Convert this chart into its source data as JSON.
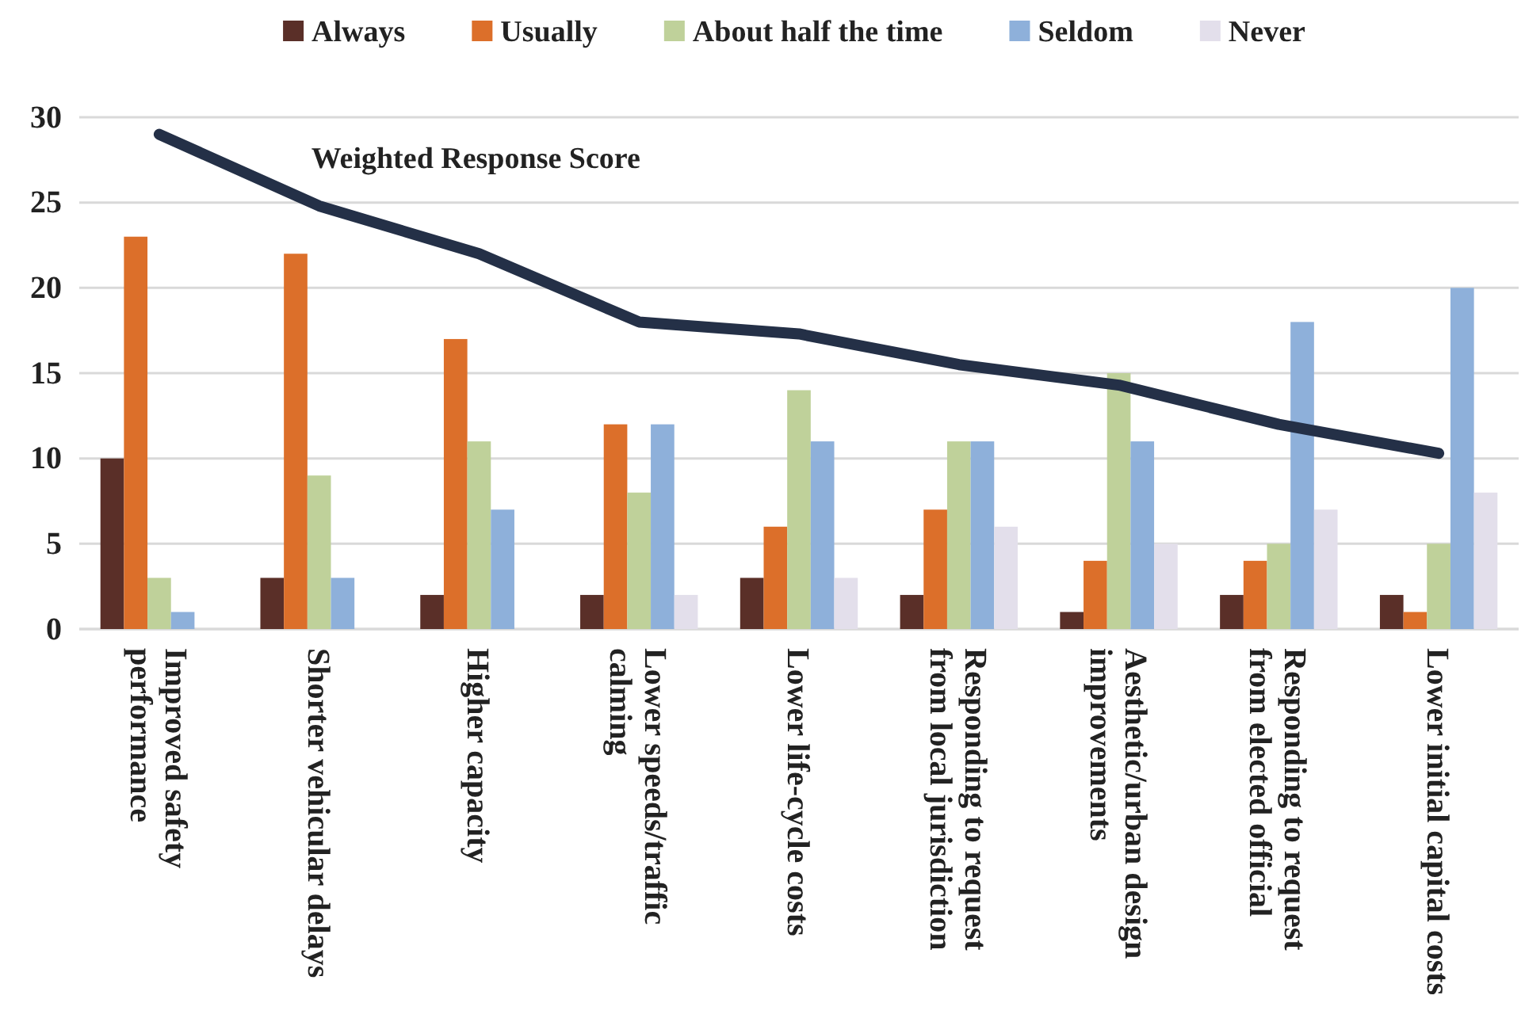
{
  "chart_data": {
    "type": "bar",
    "categories": [
      "Improved safety performance",
      "Shorter vehicular delays",
      "Higher capacity",
      "Lower speeds/traffic calming",
      "Lower life-cycle costs",
      "Responding to request from local jurisdiction",
      "Aesthetic/urban design improvements",
      "Responding to request from elected official",
      "Lower initial capital costs"
    ],
    "series": [
      {
        "name": "Always",
        "color": "#5a2f28",
        "values": [
          10,
          3,
          2,
          2,
          3,
          2,
          1,
          2,
          2
        ]
      },
      {
        "name": "Usually",
        "color": "#dc6f2a",
        "values": [
          23,
          22,
          17,
          12,
          6,
          7,
          4,
          4,
          1
        ]
      },
      {
        "name": "About half the time",
        "color": "#bfd19a",
        "values": [
          3,
          9,
          11,
          8,
          14,
          11,
          15,
          5,
          5
        ]
      },
      {
        "name": "Seldom",
        "color": "#8eb0da",
        "values": [
          1,
          3,
          7,
          12,
          11,
          11,
          11,
          18,
          20
        ]
      },
      {
        "name": "Never",
        "color": "#e3dfeb",
        "values": [
          0,
          0,
          0,
          2,
          3,
          6,
          5,
          7,
          8
        ]
      },
      {
        "name": "Weighted Response Score",
        "type": "line",
        "color": "#243047",
        "values": [
          29,
          24.8,
          22,
          18,
          17.3,
          15.5,
          14.3,
          12,
          10.3
        ]
      }
    ],
    "ylim": [
      0,
      30
    ],
    "yticks": [
      0,
      5,
      10,
      15,
      20,
      25,
      30
    ],
    "grid": "y",
    "legend": "top"
  }
}
